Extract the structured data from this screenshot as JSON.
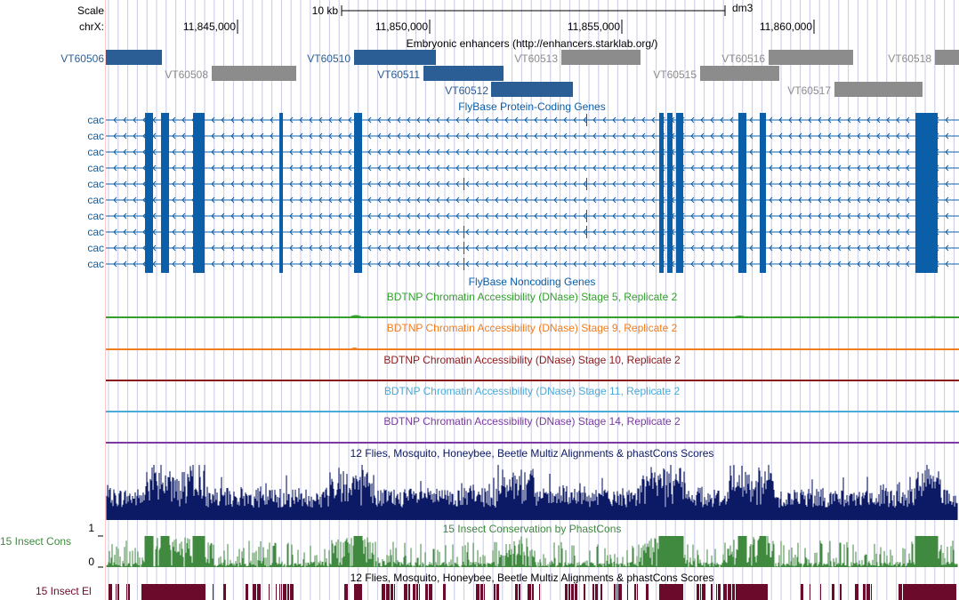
{
  "ruler": {
    "scale_label": "Scale",
    "chrom_label": "chrX:",
    "scale_bar_label": "10 kb",
    "assembly": "dm3",
    "ticks": [
      "11,845,000",
      "11,850,000",
      "11,855,000",
      "11,860,000"
    ]
  },
  "enhancers_track": {
    "title": "Embryonic enhancers (http://enhancers.starklab.org/)",
    "items": [
      {
        "name": "VT60506",
        "active": true
      },
      {
        "name": "VT60508",
        "active": false
      },
      {
        "name": "VT60510",
        "active": true
      },
      {
        "name": "VT60511",
        "active": true
      },
      {
        "name": "VT60512",
        "active": true
      },
      {
        "name": "VT60513",
        "active": false
      },
      {
        "name": "VT60515",
        "active": false
      },
      {
        "name": "VT60516",
        "active": false
      },
      {
        "name": "VT60517",
        "active": false
      },
      {
        "name": "VT60518",
        "active": false
      }
    ]
  },
  "genes_track": {
    "title": "FlyBase Protein-Coding Genes",
    "gene_labels": [
      "cac",
      "cac",
      "cac",
      "cac",
      "cac",
      "cac",
      "cac",
      "cac",
      "cac",
      "cac"
    ]
  },
  "noncoding_track": {
    "title": "FlyBase Noncoding Genes"
  },
  "dnase_tracks": [
    {
      "title": "BDTNP Chromatin Accessibility (DNase) Stage 5, Replicate 2",
      "color": "#33a02c"
    },
    {
      "title": "BDTNP Chromatin Accessibility (DNase) Stage 9, Replicate 2",
      "color": "#f07d1e"
    },
    {
      "title": "BDTNP Chromatin Accessibility (DNase) Stage 10, Replicate 2",
      "color": "#8c1a1a"
    },
    {
      "title": "BDTNP Chromatin Accessibility (DNase) Stage 11, Replicate 2",
      "color": "#4aaad8"
    },
    {
      "title": "BDTNP Chromatin Accessibility (DNase) Stage 14, Replicate 2",
      "color": "#7a3aa0"
    }
  ],
  "multiz_track": {
    "title": "12 Flies, Mosquito, Honeybee, Beetle Multiz Alignments & phastCons Scores",
    "color": "#0c1a66"
  },
  "phastcons_track": {
    "title": "15 Insect Conservation by PhastCons",
    "side_label": "15 Insect Cons",
    "ymax": "1",
    "ymin": "0",
    "color": "#3f8a3f"
  },
  "elements_track": {
    "title": "12 Flies, Mosquito, Honeybee, Beetle Multiz Alignments & phastCons Scores",
    "side_label": "15 Insect El",
    "color": "#6b0a2a"
  },
  "colors": {
    "active_enhancer": "#2b5e94",
    "inactive_enhancer": "#8c8c8c",
    "gene": "#0b5fa8",
    "grid": "#c8c8e8",
    "left_edge": "#ffc8c8"
  }
}
